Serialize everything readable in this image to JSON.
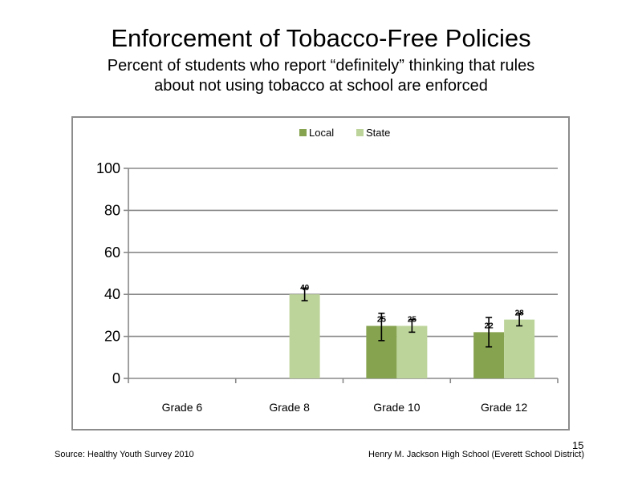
{
  "slide": {
    "title": "Enforcement of Tobacco-Free Policies",
    "subtitle_line1": "Percent of students who report “definitely” thinking that rules",
    "subtitle_line2": "about not using tobacco at school are enforced",
    "source": "Source: Healthy Youth Survey 2010",
    "school": "Henry M. Jackson High School (Everett School District)",
    "page_number": "15"
  },
  "chart_data": {
    "type": "bar",
    "categories": [
      "Grade 6",
      "Grade 8",
      "Grade 10",
      "Grade 12"
    ],
    "series": [
      {
        "name": "Local",
        "color": "#86a34f",
        "values": [
          null,
          null,
          25,
          22
        ],
        "labels": [
          "",
          "",
          "25",
          "22"
        ],
        "error_low": [
          null,
          null,
          18,
          15
        ],
        "error_high": [
          null,
          null,
          31,
          29
        ]
      },
      {
        "name": "State",
        "color": "#bcd49a",
        "values": [
          null,
          40,
          25,
          28
        ],
        "labels": [
          "",
          "40",
          "25",
          "28"
        ],
        "error_low": [
          null,
          37,
          22,
          25
        ],
        "error_high": [
          null,
          43,
          28,
          31
        ]
      }
    ],
    "ylim": [
      0,
      100
    ],
    "yticks": [
      0,
      20,
      40,
      60,
      80,
      100
    ],
    "grid": true,
    "legend_position": "top",
    "xlabel": "",
    "ylabel": ""
  }
}
